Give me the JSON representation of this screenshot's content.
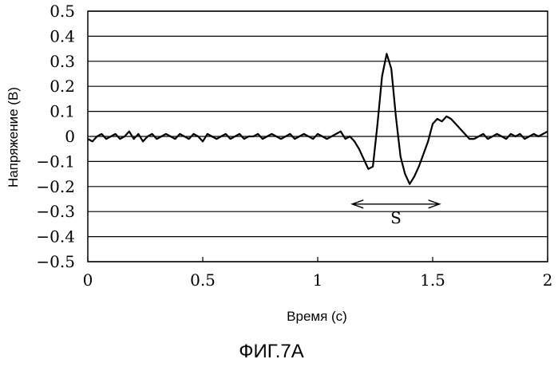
{
  "chart_data": {
    "type": "line",
    "caption": "ФИГ.7А",
    "xlabel": "Время (с)",
    "ylabel": "Напряжение (В)",
    "xlim": [
      0,
      2
    ],
    "ylim": [
      -0.5,
      0.5
    ],
    "x_ticks": [
      0,
      0.5,
      1,
      1.5,
      2
    ],
    "x_tick_labels": [
      "0",
      "0.5",
      "1",
      "1.5",
      "2"
    ],
    "y_ticks": [
      0.5,
      0.4,
      0.3,
      0.2,
      0.1,
      0,
      -0.1,
      -0.2,
      -0.3,
      -0.4,
      -0.5
    ],
    "y_tick_labels": [
      "0.5",
      "0.4",
      "0.3",
      "0.2",
      "0.1",
      "0",
      "−0.1",
      "−0.2",
      "−0.3",
      "−0.4",
      "−0.5"
    ],
    "grid": "horizontal",
    "annotation": {
      "label": "S",
      "x_start": 1.15,
      "x_end": 1.53,
      "y": -0.27
    },
    "series": [
      {
        "color": "#000000",
        "x": [
          0.0,
          0.02,
          0.04,
          0.06,
          0.08,
          0.1,
          0.12,
          0.14,
          0.16,
          0.18,
          0.2,
          0.22,
          0.24,
          0.26,
          0.28,
          0.3,
          0.32,
          0.34,
          0.36,
          0.38,
          0.4,
          0.42,
          0.44,
          0.46,
          0.48,
          0.5,
          0.52,
          0.54,
          0.56,
          0.58,
          0.6,
          0.62,
          0.64,
          0.66,
          0.68,
          0.7,
          0.72,
          0.74,
          0.76,
          0.78,
          0.8,
          0.82,
          0.84,
          0.86,
          0.88,
          0.9,
          0.92,
          0.94,
          0.96,
          0.98,
          1.0,
          1.02,
          1.04,
          1.06,
          1.08,
          1.1,
          1.12,
          1.14,
          1.16,
          1.18,
          1.2,
          1.22,
          1.24,
          1.26,
          1.28,
          1.3,
          1.32,
          1.34,
          1.36,
          1.38,
          1.4,
          1.42,
          1.44,
          1.46,
          1.48,
          1.5,
          1.52,
          1.54,
          1.56,
          1.58,
          1.6,
          1.62,
          1.64,
          1.66,
          1.68,
          1.7,
          1.72,
          1.74,
          1.76,
          1.78,
          1.8,
          1.82,
          1.84,
          1.86,
          1.88,
          1.9,
          1.92,
          1.94,
          1.96,
          1.98,
          2.0
        ],
        "y": [
          -0.01,
          -0.02,
          0.0,
          0.01,
          -0.01,
          0.0,
          0.01,
          -0.01,
          0.0,
          0.02,
          -0.01,
          0.01,
          -0.02,
          0.0,
          0.01,
          -0.01,
          0.0,
          0.01,
          0.0,
          -0.01,
          0.01,
          0.0,
          -0.01,
          0.01,
          0.0,
          -0.02,
          0.01,
          0.0,
          -0.01,
          0.0,
          0.01,
          -0.01,
          0.0,
          0.01,
          -0.01,
          0.0,
          0.0,
          0.01,
          -0.01,
          0.0,
          0.01,
          0.0,
          -0.01,
          0.0,
          0.01,
          -0.01,
          0.0,
          0.01,
          0.0,
          -0.01,
          0.01,
          0.0,
          -0.01,
          0.0,
          0.01,
          0.02,
          -0.01,
          0.0,
          -0.02,
          -0.05,
          -0.09,
          -0.13,
          -0.12,
          0.05,
          0.24,
          0.33,
          0.27,
          0.08,
          -0.08,
          -0.15,
          -0.19,
          -0.16,
          -0.12,
          -0.07,
          -0.02,
          0.05,
          0.07,
          0.06,
          0.08,
          0.07,
          0.05,
          0.03,
          0.01,
          -0.01,
          -0.01,
          0.0,
          0.01,
          -0.01,
          0.0,
          0.01,
          0.0,
          -0.01,
          0.01,
          0.0,
          0.01,
          -0.01,
          0.0,
          0.01,
          0.0,
          0.01,
          0.02
        ]
      }
    ]
  }
}
